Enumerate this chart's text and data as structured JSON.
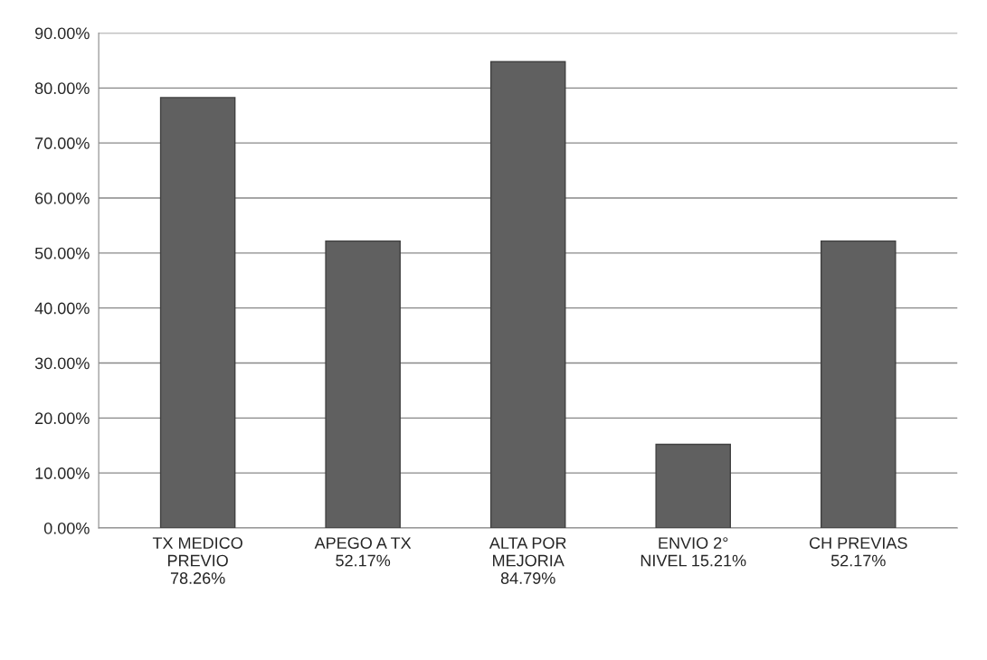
{
  "chart_data": {
    "type": "bar",
    "categories": [
      "TX MEDICO\nPREVIO\n78.26%",
      "APEGO A TX\n52.17%",
      "ALTA POR\nMEJORIA\n84.79%",
      "ENVIO 2°\nNIVEL 15.21%",
      "CH PREVIAS\n52.17%"
    ],
    "values": [
      78.26,
      52.17,
      84.79,
      15.21,
      52.17
    ],
    "color": "#606060",
    "ylim": [
      0,
      90
    ],
    "yticks": [
      {
        "value": 0,
        "label": "0.00%"
      },
      {
        "value": 10,
        "label": "10.00%"
      },
      {
        "value": 20,
        "label": "20.00%"
      },
      {
        "value": 30,
        "label": "30.00%"
      },
      {
        "value": 40,
        "label": "40.00%"
      },
      {
        "value": 50,
        "label": "50.00%"
      },
      {
        "value": 60,
        "label": "60.00%"
      },
      {
        "value": 70,
        "label": "70.00%"
      },
      {
        "value": 80,
        "label": "80.00%"
      },
      {
        "value": 90,
        "label": "90.00%"
      }
    ],
    "grid": "y"
  }
}
